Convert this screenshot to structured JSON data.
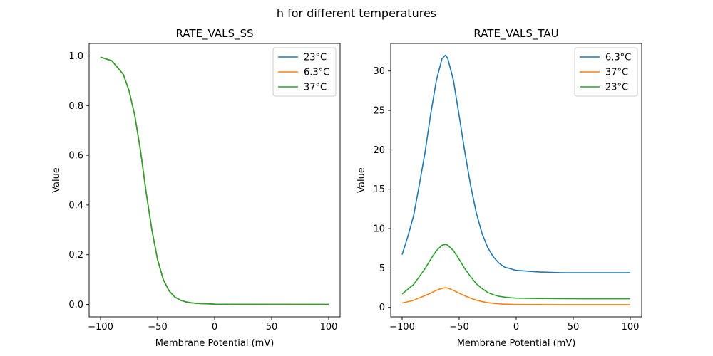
{
  "figure": {
    "title": "h for different temperatures"
  },
  "chart_data": [
    {
      "type": "line",
      "title": "RATE_VALS_SS",
      "xlabel": "Membrane Potential (mV)",
      "ylabel": "Value",
      "xlim": [
        -110,
        110
      ],
      "ylim": [
        -0.05,
        1.05
      ],
      "xticks": [
        -100,
        -50,
        0,
        50,
        100
      ],
      "yticks": [
        0.0,
        0.2,
        0.4,
        0.6,
        0.8,
        1.0
      ],
      "ytick_labels": [
        "0.0",
        "0.2",
        "0.4",
        "0.6",
        "0.8",
        "1.0"
      ],
      "grid": false,
      "legend": "upper right",
      "x": [
        -100,
        -90,
        -80,
        -75,
        -70,
        -65,
        -60,
        -55,
        -50,
        -45,
        -40,
        -35,
        -30,
        -25,
        -20,
        -15,
        -10,
        -5,
        0,
        10,
        20,
        40,
        60,
        80,
        100
      ],
      "series": [
        {
          "name": "23°C",
          "color": "#1f77b4",
          "values": [
            0.995,
            0.98,
            0.925,
            0.86,
            0.76,
            0.62,
            0.45,
            0.3,
            0.18,
            0.1,
            0.055,
            0.03,
            0.017,
            0.01,
            0.006,
            0.004,
            0.003,
            0.002,
            0.001,
            0.0006,
            0.0004,
            0.0002,
            0.0001,
            0.0,
            0.0
          ]
        },
        {
          "name": "6.3°C",
          "color": "#ff7f0e",
          "values": [
            0.995,
            0.98,
            0.925,
            0.86,
            0.76,
            0.62,
            0.45,
            0.3,
            0.18,
            0.1,
            0.055,
            0.03,
            0.017,
            0.01,
            0.006,
            0.004,
            0.003,
            0.002,
            0.001,
            0.0006,
            0.0004,
            0.0002,
            0.0001,
            0.0,
            0.0
          ]
        },
        {
          "name": "37°C",
          "color": "#2ca02c",
          "values": [
            0.995,
            0.98,
            0.925,
            0.86,
            0.76,
            0.62,
            0.45,
            0.3,
            0.18,
            0.1,
            0.055,
            0.03,
            0.017,
            0.01,
            0.006,
            0.004,
            0.003,
            0.002,
            0.001,
            0.0006,
            0.0004,
            0.0002,
            0.0001,
            0.0,
            0.0
          ]
        }
      ]
    },
    {
      "type": "line",
      "title": "RATE_VALS_TAU",
      "xlabel": "Membrane Potential (mV)",
      "ylabel": "Value",
      "xlim": [
        -110,
        110
      ],
      "ylim": [
        -1.2,
        33.5
      ],
      "xticks": [
        -100,
        -50,
        0,
        50,
        100
      ],
      "yticks": [
        0,
        5,
        10,
        15,
        20,
        25,
        30
      ],
      "ytick_labels": [
        "0",
        "5",
        "10",
        "15",
        "20",
        "25",
        "30"
      ],
      "grid": false,
      "legend": "upper right",
      "x": [
        -100,
        -95,
        -90,
        -85,
        -80,
        -75,
        -70,
        -65,
        -62,
        -60,
        -55,
        -50,
        -45,
        -40,
        -35,
        -30,
        -25,
        -20,
        -15,
        -10,
        -5,
        0,
        10,
        20,
        40,
        60,
        80,
        100
      ],
      "series": [
        {
          "name": "6.3°C",
          "color": "#1f77b4",
          "values": [
            6.7,
            9.0,
            11.6,
            15.5,
            19.6,
            24.5,
            28.8,
            31.6,
            32.0,
            31.6,
            28.8,
            24.3,
            19.7,
            15.5,
            12.0,
            9.4,
            7.6,
            6.4,
            5.6,
            5.1,
            4.9,
            4.7,
            4.6,
            4.5,
            4.4,
            4.4,
            4.4,
            4.4
          ]
        },
        {
          "name": "37°C",
          "color": "#ff7f0e",
          "values": [
            0.55,
            0.72,
            0.9,
            1.2,
            1.5,
            1.8,
            2.17,
            2.42,
            2.5,
            2.45,
            2.16,
            1.8,
            1.47,
            1.17,
            0.92,
            0.74,
            0.6,
            0.51,
            0.45,
            0.41,
            0.39,
            0.37,
            0.36,
            0.35,
            0.34,
            0.34,
            0.34,
            0.34
          ]
        },
        {
          "name": "23°C",
          "color": "#2ca02c",
          "values": [
            1.7,
            2.3,
            2.9,
            3.9,
            4.9,
            6.1,
            7.2,
            7.9,
            8.0,
            7.9,
            7.2,
            6.1,
            4.9,
            3.9,
            3.0,
            2.4,
            1.9,
            1.6,
            1.4,
            1.3,
            1.22,
            1.18,
            1.15,
            1.13,
            1.11,
            1.1,
            1.1,
            1.1
          ]
        }
      ]
    }
  ]
}
